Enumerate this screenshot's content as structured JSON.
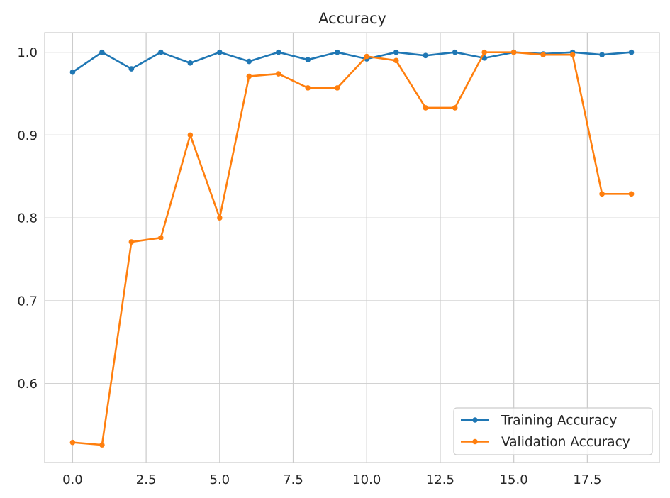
{
  "chart_data": {
    "type": "line",
    "title": "Accuracy",
    "xlabel": "",
    "ylabel": "",
    "x": [
      0,
      1,
      2,
      3,
      4,
      5,
      6,
      7,
      8,
      9,
      10,
      11,
      12,
      13,
      14,
      15,
      16,
      17,
      18,
      19
    ],
    "xlim": [
      -0.95,
      19.95
    ],
    "ylim": [
      0.5047,
      1.0237
    ],
    "xticks": [
      0.0,
      2.5,
      5.0,
      7.5,
      10.0,
      12.5,
      15.0,
      17.5
    ],
    "xtick_labels": [
      "0.0",
      "2.5",
      "5.0",
      "7.5",
      "10.0",
      "12.5",
      "15.0",
      "17.5"
    ],
    "yticks": [
      0.6,
      0.7,
      0.8,
      0.9,
      1.0
    ],
    "ytick_labels": [
      "0.6",
      "0.7",
      "0.8",
      "0.9",
      "1.0"
    ],
    "grid": true,
    "legend_position": "lower-right",
    "series": [
      {
        "name": "Training Accuracy",
        "color": "#1f77b4",
        "marker": "circle",
        "values": [
          0.976,
          1.0,
          0.98,
          1.0,
          0.987,
          1.0,
          0.989,
          1.0,
          0.991,
          1.0,
          0.992,
          1.0,
          0.996,
          1.0,
          0.993,
          1.0,
          0.998,
          1.0,
          0.997,
          1.0
        ]
      },
      {
        "name": "Validation Accuracy",
        "color": "#ff7f0e",
        "marker": "circle",
        "values": [
          0.529,
          0.526,
          0.771,
          0.776,
          0.9,
          0.8,
          0.971,
          0.974,
          0.957,
          0.957,
          0.995,
          0.99,
          0.933,
          0.933,
          1.0,
          1.0,
          0.997,
          0.997,
          0.829,
          0.829
        ]
      }
    ]
  }
}
